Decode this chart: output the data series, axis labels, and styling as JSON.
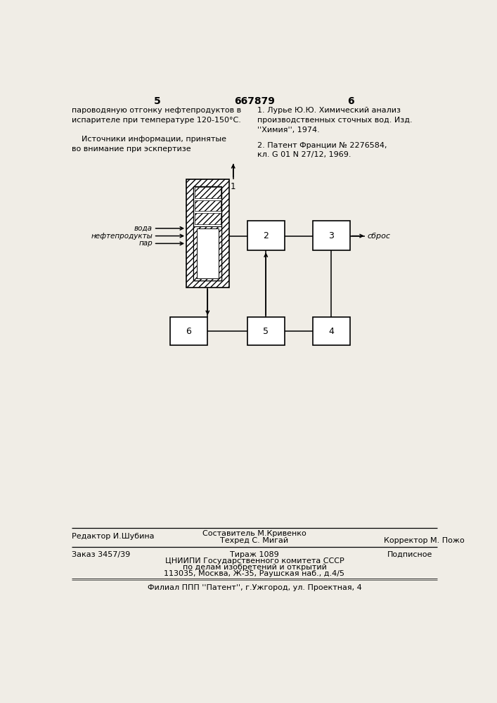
{
  "page_color": "#f0ede6",
  "top_text_left": "пароводяную отгонку нефтепродуктов в\nиспарителе при температуре 120-150°С.",
  "top_text_left2": "    Источники информации, принятые\nво внимание при эскпертизе",
  "top_text_right": "1. Лурье Ю.Ю. Химический анализ\nпроизводственных сточных вод. Изд.\n''Химия'', 1974.",
  "top_text_right2": "2. Патент Франции № 2276584,\nкл. G 01 N 27/12, 1969.",
  "page_num_left": "5",
  "page_num_center": "667879",
  "page_num_right": "6",
  "label_voda": "вода",
  "label_nefteprod": "нефтепродукты",
  "label_par": "пар",
  "label_sbros": "сброс",
  "label_1": "1",
  "label_2": "2",
  "label_3": "3",
  "label_4": "4",
  "label_5": "5",
  "label_6": "6",
  "footer_line1_left": "Редактор И.Шубина",
  "footer_line1_center_top": "Составитель М.Кривенко",
  "footer_line1_center_bot": "Техред С. Мигай",
  "footer_line1_right": "Корректор М. Пожо",
  "footer_order": "Заказ 3457/39",
  "footer_tirazh": "Тираж 1089",
  "footer_podpis": "Подписное",
  "footer_tsniip": "ЦНИИПИ Государственного комитета СССР",
  "footer_po": "по делам изобретений и открытий",
  "footer_addr": "113035, Москва, Ж-35, Раушская наб., д.4/5",
  "footer_filial": "Филиал ППП ''Патент'', г.Ужгород, ул. Проектная, 4"
}
